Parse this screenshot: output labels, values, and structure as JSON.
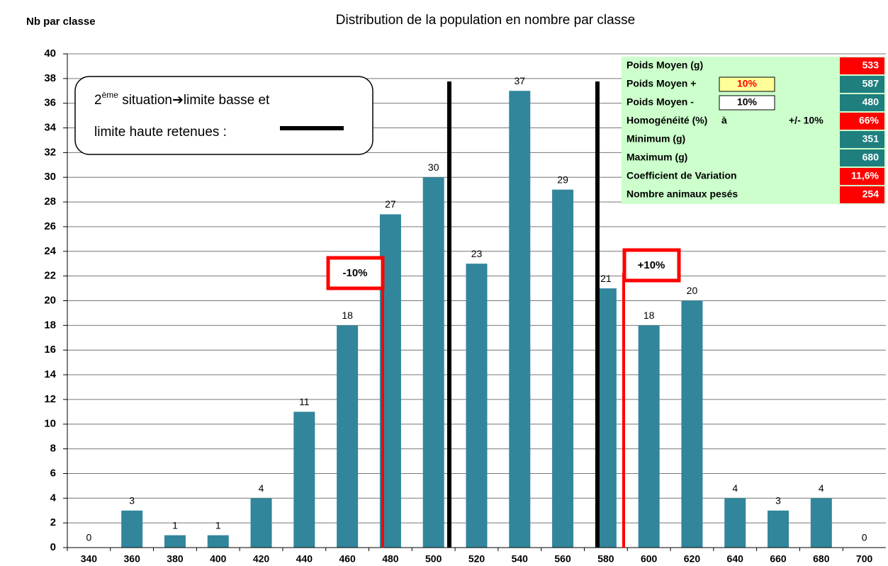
{
  "chart_data": {
    "type": "bar",
    "title": "Distribution de la population en nombre par classe",
    "y_axis_title": "Nb par classe",
    "categories": [
      "340",
      "360",
      "380",
      "400",
      "420",
      "440",
      "460",
      "480",
      "500",
      "520",
      "540",
      "560",
      "580",
      "600",
      "620",
      "640",
      "660",
      "680",
      "700"
    ],
    "values": [
      0,
      3,
      1,
      1,
      4,
      11,
      18,
      27,
      30,
      23,
      37,
      29,
      21,
      18,
      20,
      4,
      3,
      4,
      0
    ],
    "color": "#31869b",
    "ylim": [
      0,
      40
    ],
    "yticks": [
      0,
      2,
      4,
      6,
      8,
      10,
      12,
      14,
      16,
      18,
      20,
      22,
      24,
      26,
      28,
      30,
      32,
      34,
      36,
      38,
      40
    ],
    "grid": true,
    "lower_limit_label": "-10%",
    "upper_limit_label": "+10%",
    "callout": {
      "line1": [
        "2",
        "ème",
        " situation",
        "➔",
        "limite basse et"
      ],
      "line2": "limite haute retenues :"
    },
    "stats_table": [
      {
        "label": "Poids Moyen (g)",
        "value": "533",
        "color": "#ff0000"
      },
      {
        "label": "Poids Moyen +",
        "box": "10%",
        "box_color": "#ffff99",
        "box_text_color": "#ff0000",
        "value": "587",
        "color": "#1f7f7f"
      },
      {
        "label": "Poids Moyen -",
        "box": "10%",
        "box_color": "#ffffff",
        "box_text_color": "#000000",
        "value": "480",
        "color": "#1f7f7f"
      },
      {
        "label": "Homogénéité (%)",
        "mid": "à",
        "extra": "+/- 10%",
        "value": "66%",
        "color": "#ff0000"
      },
      {
        "label": "Minimum (g)",
        "value": "351",
        "color": "#1f7f7f"
      },
      {
        "label": "Maximum (g)",
        "value": "680",
        "color": "#1f7f7f"
      },
      {
        "label": "Coefficient de Variation",
        "value": "11,6%",
        "color": "#ff0000"
      },
      {
        "label": "Nombre animaux pesés",
        "value": "254",
        "color": "#ff0000"
      }
    ]
  }
}
